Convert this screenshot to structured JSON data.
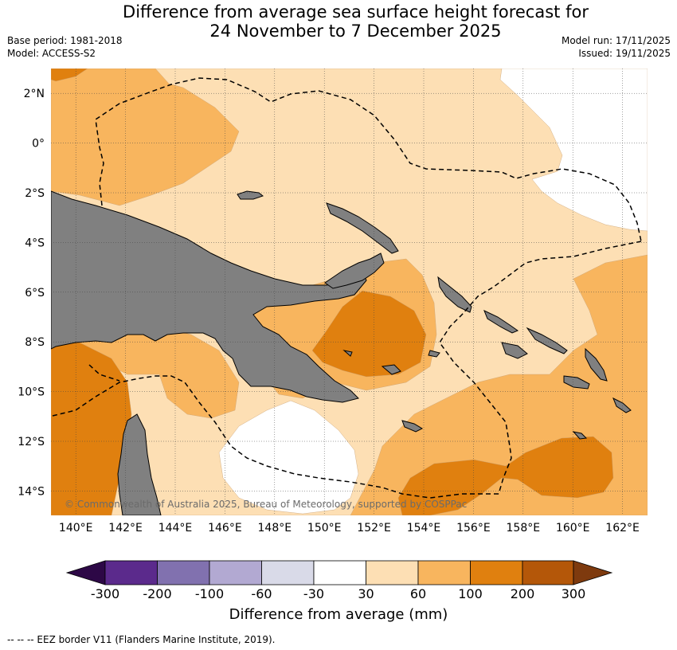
{
  "title": {
    "line1": "Difference from average sea surface height forecast for",
    "line2": "24 November to 7 December 2025"
  },
  "meta": {
    "base_period": "Base period: 1981-2018",
    "model": "Model: ACCESS-S2",
    "model_run": "Model run: 17/11/2025",
    "issued": "Issued: 19/11/2025"
  },
  "map": {
    "lon_labels": [
      "140°E",
      "142°E",
      "144°E",
      "146°E",
      "148°E",
      "150°E",
      "152°E",
      "154°E",
      "156°E",
      "158°E",
      "160°E",
      "162°E"
    ],
    "lat_labels": [
      "2°N",
      "0°",
      "2°S",
      "4°S",
      "6°S",
      "8°S",
      "10°S",
      "12°S",
      "14°S"
    ],
    "copyright": "© Commonwealth of Australia 2025, Bureau of Meteorology, supported by COSPPac"
  },
  "colorbar": {
    "title": "Difference from average (mm)",
    "tick_labels": [
      "-300",
      "-200",
      "-100",
      "-60",
      "-30",
      "30",
      "60",
      "100",
      "200",
      "300"
    ],
    "colors": [
      "#2d0846",
      "#5b2a8c",
      "#8171af",
      "#b2a9d2",
      "#d9dae8",
      "#ffffff",
      "#fddfb4",
      "#f8b55e",
      "#e0800f",
      "#b45709",
      "#7e3a0e"
    ]
  },
  "legend": {
    "eez": "--  --  -- EEZ border V11 (Flanders Marine Institute, 2019)."
  },
  "palette": {
    "land": "#808080",
    "c_white": "#ffffff",
    "c_light": "#fddfb4",
    "c_mid": "#f8b55e",
    "c_dark": "#e0800f"
  }
}
